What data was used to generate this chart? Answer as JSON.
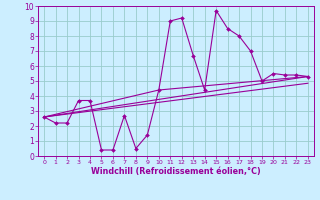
{
  "xlabel": "Windchill (Refroidissement éolien,°C)",
  "x_values": [
    0,
    1,
    2,
    3,
    4,
    5,
    6,
    7,
    8,
    9,
    10,
    11,
    12,
    13,
    14,
    15,
    16,
    17,
    18,
    19,
    20,
    21,
    22,
    23
  ],
  "jagged_y": [
    2.6,
    2.2,
    2.2,
    3.7,
    3.7,
    0.4,
    0.4,
    2.7,
    0.5,
    1.4,
    4.4,
    9.0,
    9.2,
    6.7,
    4.4,
    9.7,
    8.5,
    8.0,
    7.0,
    5.0,
    5.5,
    5.4,
    5.4,
    5.3
  ],
  "line1_x": [
    0,
    23
  ],
  "line1_y": [
    2.6,
    5.3
  ],
  "line2_x": [
    0,
    10,
    23
  ],
  "line2_y": [
    2.6,
    4.4,
    5.3
  ],
  "line3_x": [
    0,
    23
  ],
  "line3_y": [
    2.6,
    4.85
  ],
  "ylim": [
    0,
    10
  ],
  "xlim": [
    -0.5,
    23.5
  ],
  "bg_color": "#cceeff",
  "grid_color": "#99cccc",
  "line_color": "#990099",
  "marker": "D",
  "marker_size": 2.0,
  "tick_fontsize": 5.5,
  "xlabel_fontsize": 5.8
}
